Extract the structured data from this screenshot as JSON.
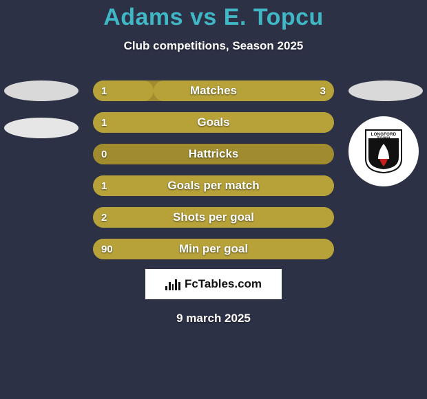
{
  "background_color": "#2d3146",
  "title": {
    "text": "Adams vs E. Topcu",
    "color": "#3fb7c4",
    "fontsize": 34
  },
  "subtitle": {
    "text": "Club competitions, Season 2025",
    "color": "#ffffff",
    "fontsize": 17
  },
  "left_markers": {
    "ellipse1_color": "#d9d9d9",
    "ellipse2_color": "#e6e6e6"
  },
  "right_markers": {
    "ellipse_color": "#d9d9d9",
    "crest_bg": "#ffffff",
    "crest_stroke": "#111111",
    "crest_inner_fill": "#111111",
    "crest_accent": "#c81e1e",
    "crest_top_text": "LONGFORD TOWN"
  },
  "bars": {
    "base_color": "#a08c2e",
    "left_fill_color": "#b7a23a",
    "right_fill_color": "#b7a23a",
    "text_color": "#ffffff",
    "value_color": "#ffffff",
    "height": 30,
    "gap": 16,
    "items": [
      {
        "label": "Matches",
        "left": "1",
        "right": "3",
        "left_raw": 1,
        "right_raw": 3,
        "left_pct": 25,
        "right_pct": 75
      },
      {
        "label": "Goals",
        "left": "1",
        "right": "",
        "left_raw": 1,
        "right_raw": 0,
        "left_pct": 100,
        "right_pct": 0
      },
      {
        "label": "Hattricks",
        "left": "0",
        "right": "",
        "left_raw": 0,
        "right_raw": 0,
        "left_pct": 0,
        "right_pct": 0
      },
      {
        "label": "Goals per match",
        "left": "1",
        "right": "",
        "left_raw": 1,
        "right_raw": 0,
        "left_pct": 100,
        "right_pct": 0
      },
      {
        "label": "Shots per goal",
        "left": "2",
        "right": "",
        "left_raw": 2,
        "right_raw": 0,
        "left_pct": 100,
        "right_pct": 0
      },
      {
        "label": "Min per goal",
        "left": "90",
        "right": "",
        "left_raw": 90,
        "right_raw": 0,
        "left_pct": 100,
        "right_pct": 0
      }
    ]
  },
  "branding": {
    "bg": "#ffffff",
    "icon_color": "#111111",
    "text_color": "#111111",
    "label": "FcTables.com"
  },
  "date": {
    "text": "9 march 2025",
    "color": "#ffffff"
  }
}
